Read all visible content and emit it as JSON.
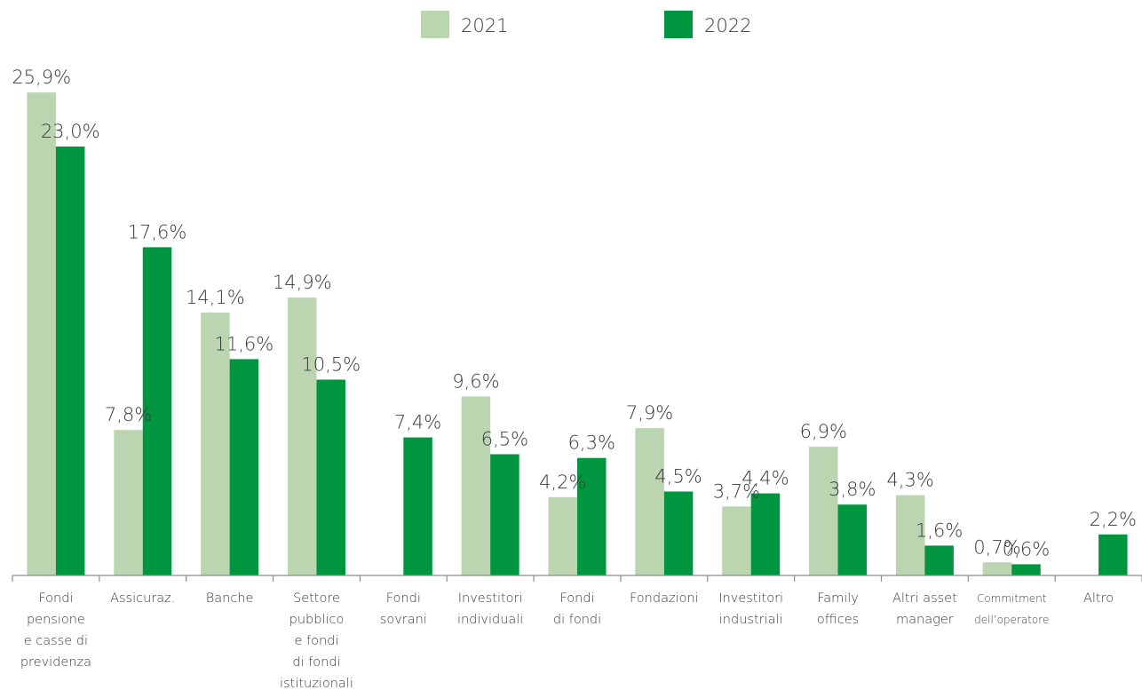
{
  "chart_data": {
    "type": "bar",
    "legend_position": "top-center",
    "grid": false,
    "ylim": [
      0,
      27
    ],
    "categories": [
      [
        "Fondi",
        "pensione",
        "e casse di",
        "previdenza"
      ],
      [
        "Assicuraz."
      ],
      [
        "Banche"
      ],
      [
        "Settore",
        "pubblico",
        "e fondi",
        "di fondi",
        "istituzionali"
      ],
      [
        "Fondi",
        "sovrani"
      ],
      [
        "Investitori",
        "individuali"
      ],
      [
        "Fondi",
        "di fondi"
      ],
      [
        "Fondazioni"
      ],
      [
        "Investitori",
        "industriali"
      ],
      [
        "Family",
        "offices"
      ],
      [
        "Altri asset",
        "manager"
      ],
      [
        "Commitment",
        "dell’operatore"
      ],
      [
        "Altro"
      ]
    ],
    "series": [
      {
        "name": "2021",
        "color": "#bad5b0",
        "values": [
          25.9,
          7.8,
          14.1,
          14.9,
          null,
          9.6,
          4.2,
          7.9,
          3.7,
          6.9,
          4.3,
          0.7,
          null
        ],
        "labels": [
          "25,9%",
          "7,8%",
          "14,1%",
          "14,9%",
          "",
          "9,6%",
          "4,2%",
          "7,9%",
          "3,7%",
          "6,9%",
          "4,3%",
          "0,7%",
          ""
        ]
      },
      {
        "name": "2022",
        "color": "#00963f",
        "values": [
          23.0,
          17.6,
          11.6,
          10.5,
          7.4,
          6.5,
          6.3,
          4.5,
          4.4,
          3.8,
          1.6,
          0.6,
          2.2
        ],
        "labels": [
          "23,0%",
          "17,6%",
          "11,6%",
          "10,5%",
          "7,4%",
          "6,5%",
          "6,3%",
          "4,5%",
          "4,4%",
          "3,8%",
          "1,6%",
          "0,6%",
          "2,2%"
        ]
      }
    ]
  }
}
